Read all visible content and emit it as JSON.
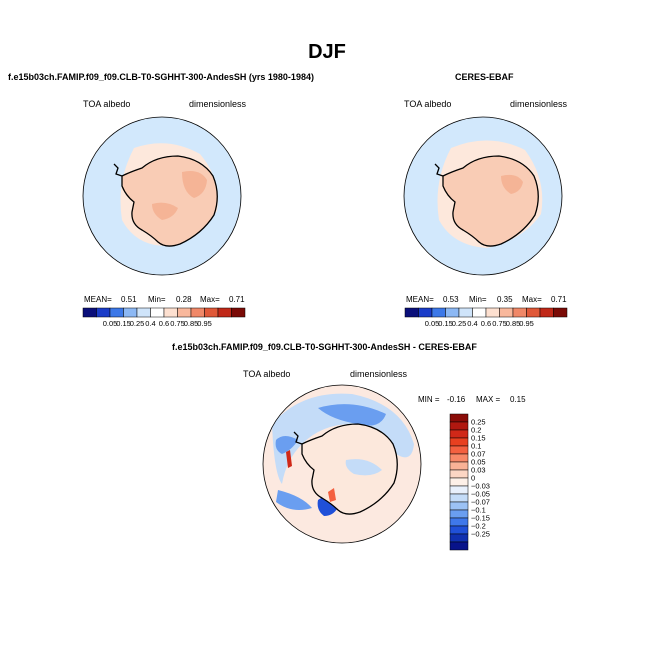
{
  "figure": {
    "title": "DJF",
    "colors": {
      "ocean": "#d2e8fc",
      "ice": "#f9ccb5",
      "ice_dark": "#f5b496",
      "diff_neutral": "#fce9e0",
      "coast": "#000000"
    }
  },
  "chart_data": [
    {
      "type": "heatmap",
      "panel": "model",
      "title": "f.e15b03ch.FAMIP.f09_f09.CLB-T0-SGHHT-300-AndesSH (yrs 1980-1984)",
      "variable": "TOA albedo",
      "units": "dimensionless",
      "stats": {
        "mean_label": "MEAN=",
        "mean": "0.51",
        "min_label": "Min=",
        "min": "0.28",
        "max_label": "Max=",
        "max": "0.71"
      },
      "colorbar": {
        "orientation": "horizontal",
        "levels": [
          "0.05",
          "0.15",
          "0.25",
          "0.4",
          "0.6",
          "0.75",
          "0.85",
          "0.95"
        ],
        "colors": [
          "#0a0f7a",
          "#1a3cc8",
          "#3c78e8",
          "#8cb8f4",
          "#cfe4fa",
          "#ffffff",
          "#fde0d0",
          "#f9b89c",
          "#f08868",
          "#e05838",
          "#c02818",
          "#7a0a06"
        ]
      }
    },
    {
      "type": "heatmap",
      "panel": "obs",
      "title": "CERES-EBAF",
      "variable": "TOA albedo",
      "units": "dimensionless",
      "stats": {
        "mean_label": "MEAN=",
        "mean": "0.53",
        "min_label": "Min=",
        "min": "0.35",
        "max_label": "Max=",
        "max": "0.71"
      },
      "colorbar": {
        "orientation": "horizontal",
        "levels": [
          "0.05",
          "0.15",
          "0.25",
          "0.4",
          "0.6",
          "0.75",
          "0.85",
          "0.95"
        ],
        "colors": [
          "#0a0f7a",
          "#1a3cc8",
          "#3c78e8",
          "#8cb8f4",
          "#cfe4fa",
          "#ffffff",
          "#fde0d0",
          "#f9b89c",
          "#f08868",
          "#e05838",
          "#c02818",
          "#7a0a06"
        ]
      }
    },
    {
      "type": "heatmap",
      "panel": "difference",
      "title": "f.e15b03ch.FAMIP.f09_f09.CLB-T0-SGHHT-300-AndesSH - CERES-EBAF",
      "variable": "TOA albedo",
      "units": "dimensionless",
      "stats": {
        "min_label": "MIN =",
        "min": "-0.16",
        "max_label": "MAX =",
        "max": "0.15"
      },
      "colorbar": {
        "orientation": "vertical",
        "levels": [
          "0.25",
          "0.2",
          "0.15",
          "0.1",
          "0.07",
          "0.05",
          "0.03",
          "0",
          "−0.03",
          "−0.05",
          "−0.07",
          "−0.1",
          "−0.15",
          "−0.2",
          "−0.25"
        ],
        "colors": [
          "#8a0c08",
          "#b01810",
          "#d02818",
          "#e84020",
          "#f46040",
          "#f88868",
          "#fab296",
          "#fcd6c4",
          "#fdf0e8",
          "#e8f0fc",
          "#c4dcf8",
          "#9cc2f4",
          "#6a9ef0",
          "#3f78ea",
          "#2050d8",
          "#1030b0",
          "#08138a"
        ]
      }
    }
  ]
}
